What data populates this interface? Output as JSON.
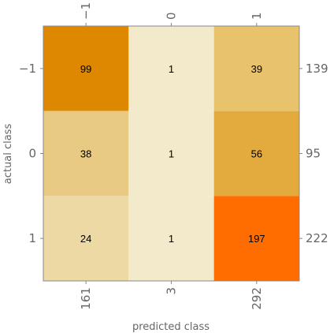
{
  "chart_data": {
    "type": "heatmap",
    "title": "",
    "xlabel": "predicted class",
    "ylabel": "actual class",
    "x_categories": [
      "−1",
      "0",
      "1"
    ],
    "y_categories": [
      "−1",
      "0",
      "1"
    ],
    "values": [
      [
        99,
        1,
        39
      ],
      [
        38,
        1,
        56
      ],
      [
        24,
        1,
        197
      ]
    ],
    "row_totals": [
      "139",
      "95",
      "222"
    ],
    "column_totals": [
      "161",
      "3",
      "292"
    ],
    "cell_colors": [
      [
        "#DD8800",
        "#F3EACC",
        "#E9C26C"
      ],
      [
        "#E8CA82",
        "#F3EACC",
        "#E3AA3E"
      ],
      [
        "#EDD9A3",
        "#F3EACC",
        "#FF6C00"
      ]
    ],
    "frame_color": "#888888"
  }
}
